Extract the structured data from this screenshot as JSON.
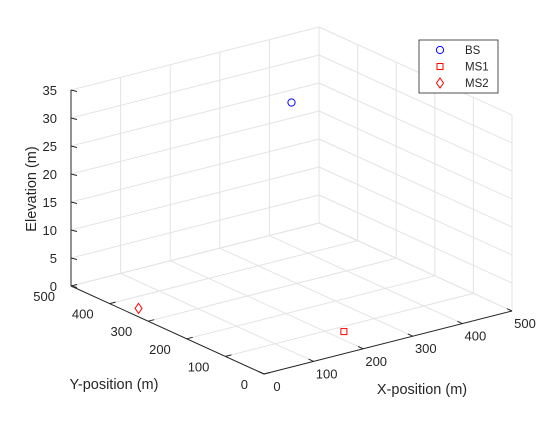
{
  "chart_data": {
    "type": "scatter3d",
    "title": "",
    "xlabel": "X-position (m)",
    "ylabel": "Y-position (m)",
    "zlabel": "Elevation (m)",
    "xlim": [
      0,
      500
    ],
    "ylim": [
      0,
      500
    ],
    "zlim": [
      0,
      35
    ],
    "xticks": [
      "0",
      "100",
      "200",
      "300",
      "400",
      "500"
    ],
    "yticks": [
      "0",
      "100",
      "200",
      "300",
      "400",
      "500"
    ],
    "zticks": [
      "0",
      "5",
      "10",
      "15",
      "20",
      "25",
      "30",
      "35"
    ],
    "grid": true,
    "legend_position": "top-right",
    "series": [
      {
        "name": "BS",
        "marker": "circle",
        "color": "#0000ff",
        "points": [
          {
            "x": 250,
            "y": 250,
            "z": 35
          }
        ]
      },
      {
        "name": "MS1",
        "marker": "square",
        "color": "#ff0000",
        "points": [
          {
            "x": 200,
            "y": 50,
            "z": 1.5
          }
        ]
      },
      {
        "name": "MS2",
        "marker": "diamond",
        "color": "#ff0000",
        "points": [
          {
            "x": 0,
            "y": 325,
            "z": 1.5
          }
        ]
      }
    ]
  }
}
